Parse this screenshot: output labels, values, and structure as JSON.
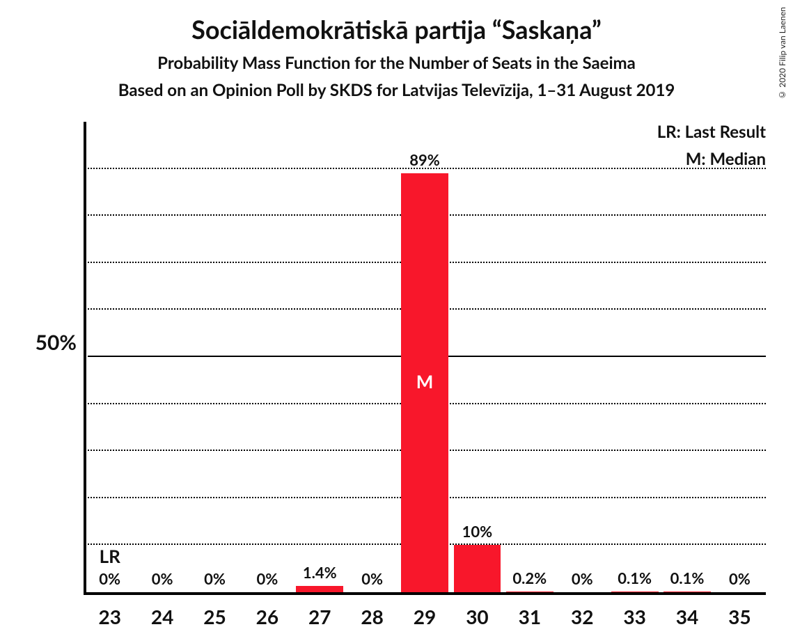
{
  "title": "Sociāldemokrātiskā partija “Saskaņa”",
  "subtitle1": "Probability Mass Function for the Number of Seats in the Saeima",
  "subtitle2": "Based on an Opinion Poll by SKDS for Latvijas Televīzija, 1–31 August 2019",
  "copyright": "© 2020 Filip van Laenen",
  "chart": {
    "type": "bar",
    "bar_color": "#f8172b",
    "background_color": "#ffffff",
    "grid_color": "#000000",
    "axis_color": "#000000",
    "y_axis": {
      "label": "50%",
      "label_at": 50,
      "max": 100,
      "gridlines": [
        10,
        20,
        30,
        40,
        50,
        60,
        70,
        80,
        90
      ]
    },
    "legend": {
      "lr": "LR: Last Result",
      "m": "M: Median"
    },
    "bars": [
      {
        "x": "23",
        "pct": 0,
        "label": "0%",
        "marker": "LR",
        "marker_pos": "above",
        "marker_color": "dark"
      },
      {
        "x": "24",
        "pct": 0,
        "label": "0%"
      },
      {
        "x": "25",
        "pct": 0,
        "label": "0%"
      },
      {
        "x": "26",
        "pct": 0,
        "label": "0%"
      },
      {
        "x": "27",
        "pct": 1.4,
        "label": "1.4%"
      },
      {
        "x": "28",
        "pct": 0,
        "label": "0%"
      },
      {
        "x": "29",
        "pct": 89,
        "label": "89%",
        "marker": "M",
        "marker_pos": "inside",
        "marker_color": "light"
      },
      {
        "x": "30",
        "pct": 10,
        "label": "10%"
      },
      {
        "x": "31",
        "pct": 0.2,
        "label": "0.2%"
      },
      {
        "x": "32",
        "pct": 0,
        "label": "0%"
      },
      {
        "x": "33",
        "pct": 0.1,
        "label": "0.1%"
      },
      {
        "x": "34",
        "pct": 0.1,
        "label": "0.1%"
      },
      {
        "x": "35",
        "pct": 0,
        "label": "0%"
      }
    ]
  }
}
